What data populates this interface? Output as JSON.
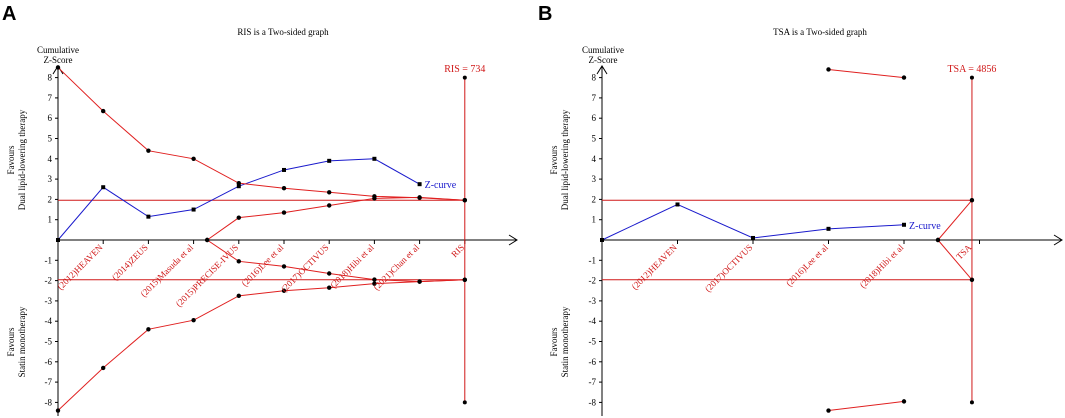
{
  "chart_data": [
    {
      "type": "line",
      "panel": "A",
      "title": "RIS is a Two-sided graph",
      "ylabel": "Cumulative\nZ-Score",
      "ylim": [
        -8.4,
        8.6
      ],
      "yticks": [
        -8,
        -7,
        -6,
        -5,
        -4,
        -3,
        -2,
        -1,
        1,
        2,
        3,
        4,
        5,
        6,
        7,
        8
      ],
      "favours_top": [
        "Favours",
        "Dual lipid-lowering therapy"
      ],
      "favours_bottom": [
        "Favours",
        "Statin monotherapy"
      ],
      "x_positions": [
        0,
        1,
        2,
        3,
        4,
        5,
        6,
        7,
        8,
        9
      ],
      "x_max": 10,
      "x_labels": [
        "(2012)HEAVEN",
        "(2014)ZEUS",
        "(2015)Masuda et al",
        "(2015)PRECISE-IVUS",
        "(2016)Lee et al",
        "(2017)OCTIVUS",
        "(2018)Hibi et al",
        "(2021)Chan et al",
        "RIS"
      ],
      "x_label_positions": [
        1,
        2,
        3,
        4,
        5,
        6,
        7,
        8,
        9
      ],
      "ris_label": "RIS = 734",
      "ris_x": 9,
      "conventional_boundary": 1.96,
      "series": [
        {
          "name": "Z-curve",
          "color": "#1a1acc",
          "x": [
            0,
            1,
            2,
            3,
            4,
            5,
            6,
            7,
            8
          ],
          "values": [
            0,
            2.6,
            1.15,
            1.5,
            2.65,
            3.45,
            3.9,
            4.0,
            2.75
          ],
          "label": "Z-curve"
        },
        {
          "name": "Upper monitoring boundary",
          "color": "#e02020",
          "x": [
            0,
            1,
            2,
            3,
            4,
            5,
            6,
            7,
            8,
            9
          ],
          "values": [
            8.5,
            6.35,
            4.4,
            4.0,
            2.8,
            2.55,
            2.35,
            2.15,
            2.08,
            1.96
          ]
        },
        {
          "name": "Lower monitoring boundary",
          "color": "#e02020",
          "x": [
            0,
            1,
            2,
            3,
            4,
            5,
            6,
            7,
            8,
            9
          ],
          "values": [
            -8.4,
            -6.3,
            -4.4,
            -3.95,
            -2.75,
            -2.5,
            -2.35,
            -2.15,
            -2.05,
            -1.96
          ]
        },
        {
          "name": "Upper futility boundary",
          "color": "#e02020",
          "x": [
            3.3,
            4,
            5,
            6,
            7,
            8,
            9
          ],
          "values": [
            0,
            -1.05,
            -1.3,
            -1.65,
            -1.95,
            -2.05,
            -1.96
          ]
        },
        {
          "name": "Lower futility boundary",
          "color": "#e02020",
          "x": [
            3.3,
            4,
            5,
            6,
            7,
            8,
            9
          ],
          "values": [
            0,
            1.1,
            1.35,
            1.7,
            2.05,
            2.1,
            1.96
          ]
        }
      ]
    },
    {
      "type": "line",
      "panel": "B",
      "title": "TSA is a Two-sided graph",
      "ylabel": "Cumulative\nZ-Score",
      "ylim": [
        -8.4,
        8.6
      ],
      "yticks": [
        -8,
        -7,
        -6,
        -5,
        -4,
        -3,
        -2,
        -1,
        1,
        2,
        3,
        4,
        5,
        6,
        7,
        8
      ],
      "favours_top": [
        "Favours",
        "Dual lipid-lowering therapy"
      ],
      "favours_bottom": [
        "Favours",
        "Statin monotherapy"
      ],
      "x_positions": [
        0,
        1,
        2,
        3,
        4,
        5
      ],
      "x_max": 5.5,
      "x_labels": [
        "(2012)HEAVEN",
        "(2017)OCTIVUS",
        "(2016)Lee et al",
        "(2018)Hibi et al",
        "TSA"
      ],
      "x_label_positions": [
        1,
        2,
        3,
        4,
        4.9
      ],
      "ris_label": "TSA = 4856",
      "ris_x": 4.9,
      "conventional_boundary": 1.96,
      "series": [
        {
          "name": "Z-curve",
          "color": "#1a1acc",
          "x": [
            0,
            1,
            2,
            3,
            4
          ],
          "values": [
            0,
            1.75,
            0.1,
            0.55,
            0.75
          ],
          "label": "Z-curve"
        },
        {
          "name": "Upper monitoring boundary",
          "color": "#e02020",
          "x": [
            3,
            4
          ],
          "values": [
            8.4,
            8.0
          ]
        },
        {
          "name": "Lower monitoring boundary",
          "color": "#e02020",
          "x": [
            3,
            4
          ],
          "values": [
            -8.4,
            -7.95
          ]
        },
        {
          "name": "Futility wedge upper",
          "color": "#e02020",
          "x": [
            4.45,
            4.9
          ],
          "values": [
            0,
            1.96
          ]
        },
        {
          "name": "Futility wedge lower",
          "color": "#e02020",
          "x": [
            4.45,
            4.9
          ],
          "values": [
            0,
            -1.96
          ]
        }
      ]
    }
  ]
}
